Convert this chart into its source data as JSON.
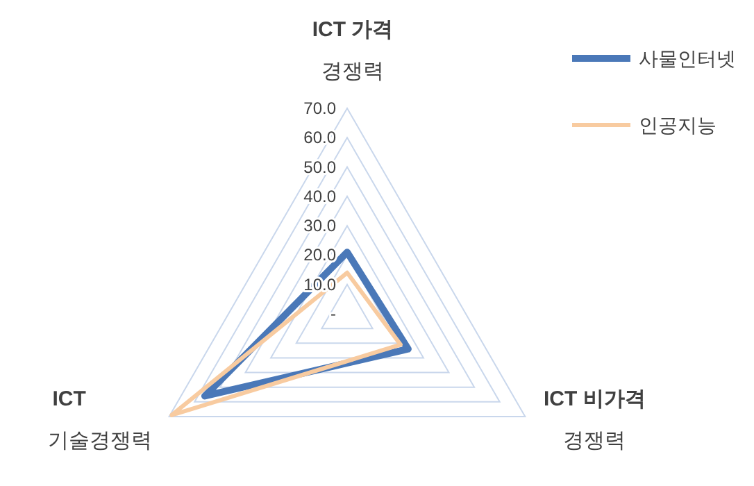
{
  "chart_data": {
    "type": "radar",
    "categories": [
      "ICT 가격\n경쟁력",
      "ICT 비가격\n경쟁력",
      "ICT\n기술경쟁력"
    ],
    "series": [
      {
        "name": "사물인터넷",
        "color": "#4a78b8",
        "values": [
          21,
          24,
          56
        ]
      },
      {
        "name": "인공지능",
        "color": "#f8cba0",
        "values": [
          14,
          21,
          69
        ]
      }
    ],
    "ylim": [
      0,
      70
    ],
    "yticks": [
      {
        "value": 0,
        "label": "-"
      },
      {
        "value": 10,
        "label": "10.0"
      },
      {
        "value": 20,
        "label": "20.0"
      },
      {
        "value": 30,
        "label": "30.0"
      },
      {
        "value": 40,
        "label": "40.0"
      },
      {
        "value": 50,
        "label": "50.0"
      },
      {
        "value": 60,
        "label": "60.0"
      },
      {
        "value": 70,
        "label": "70.0"
      }
    ],
    "grid": true,
    "legend": "right"
  }
}
